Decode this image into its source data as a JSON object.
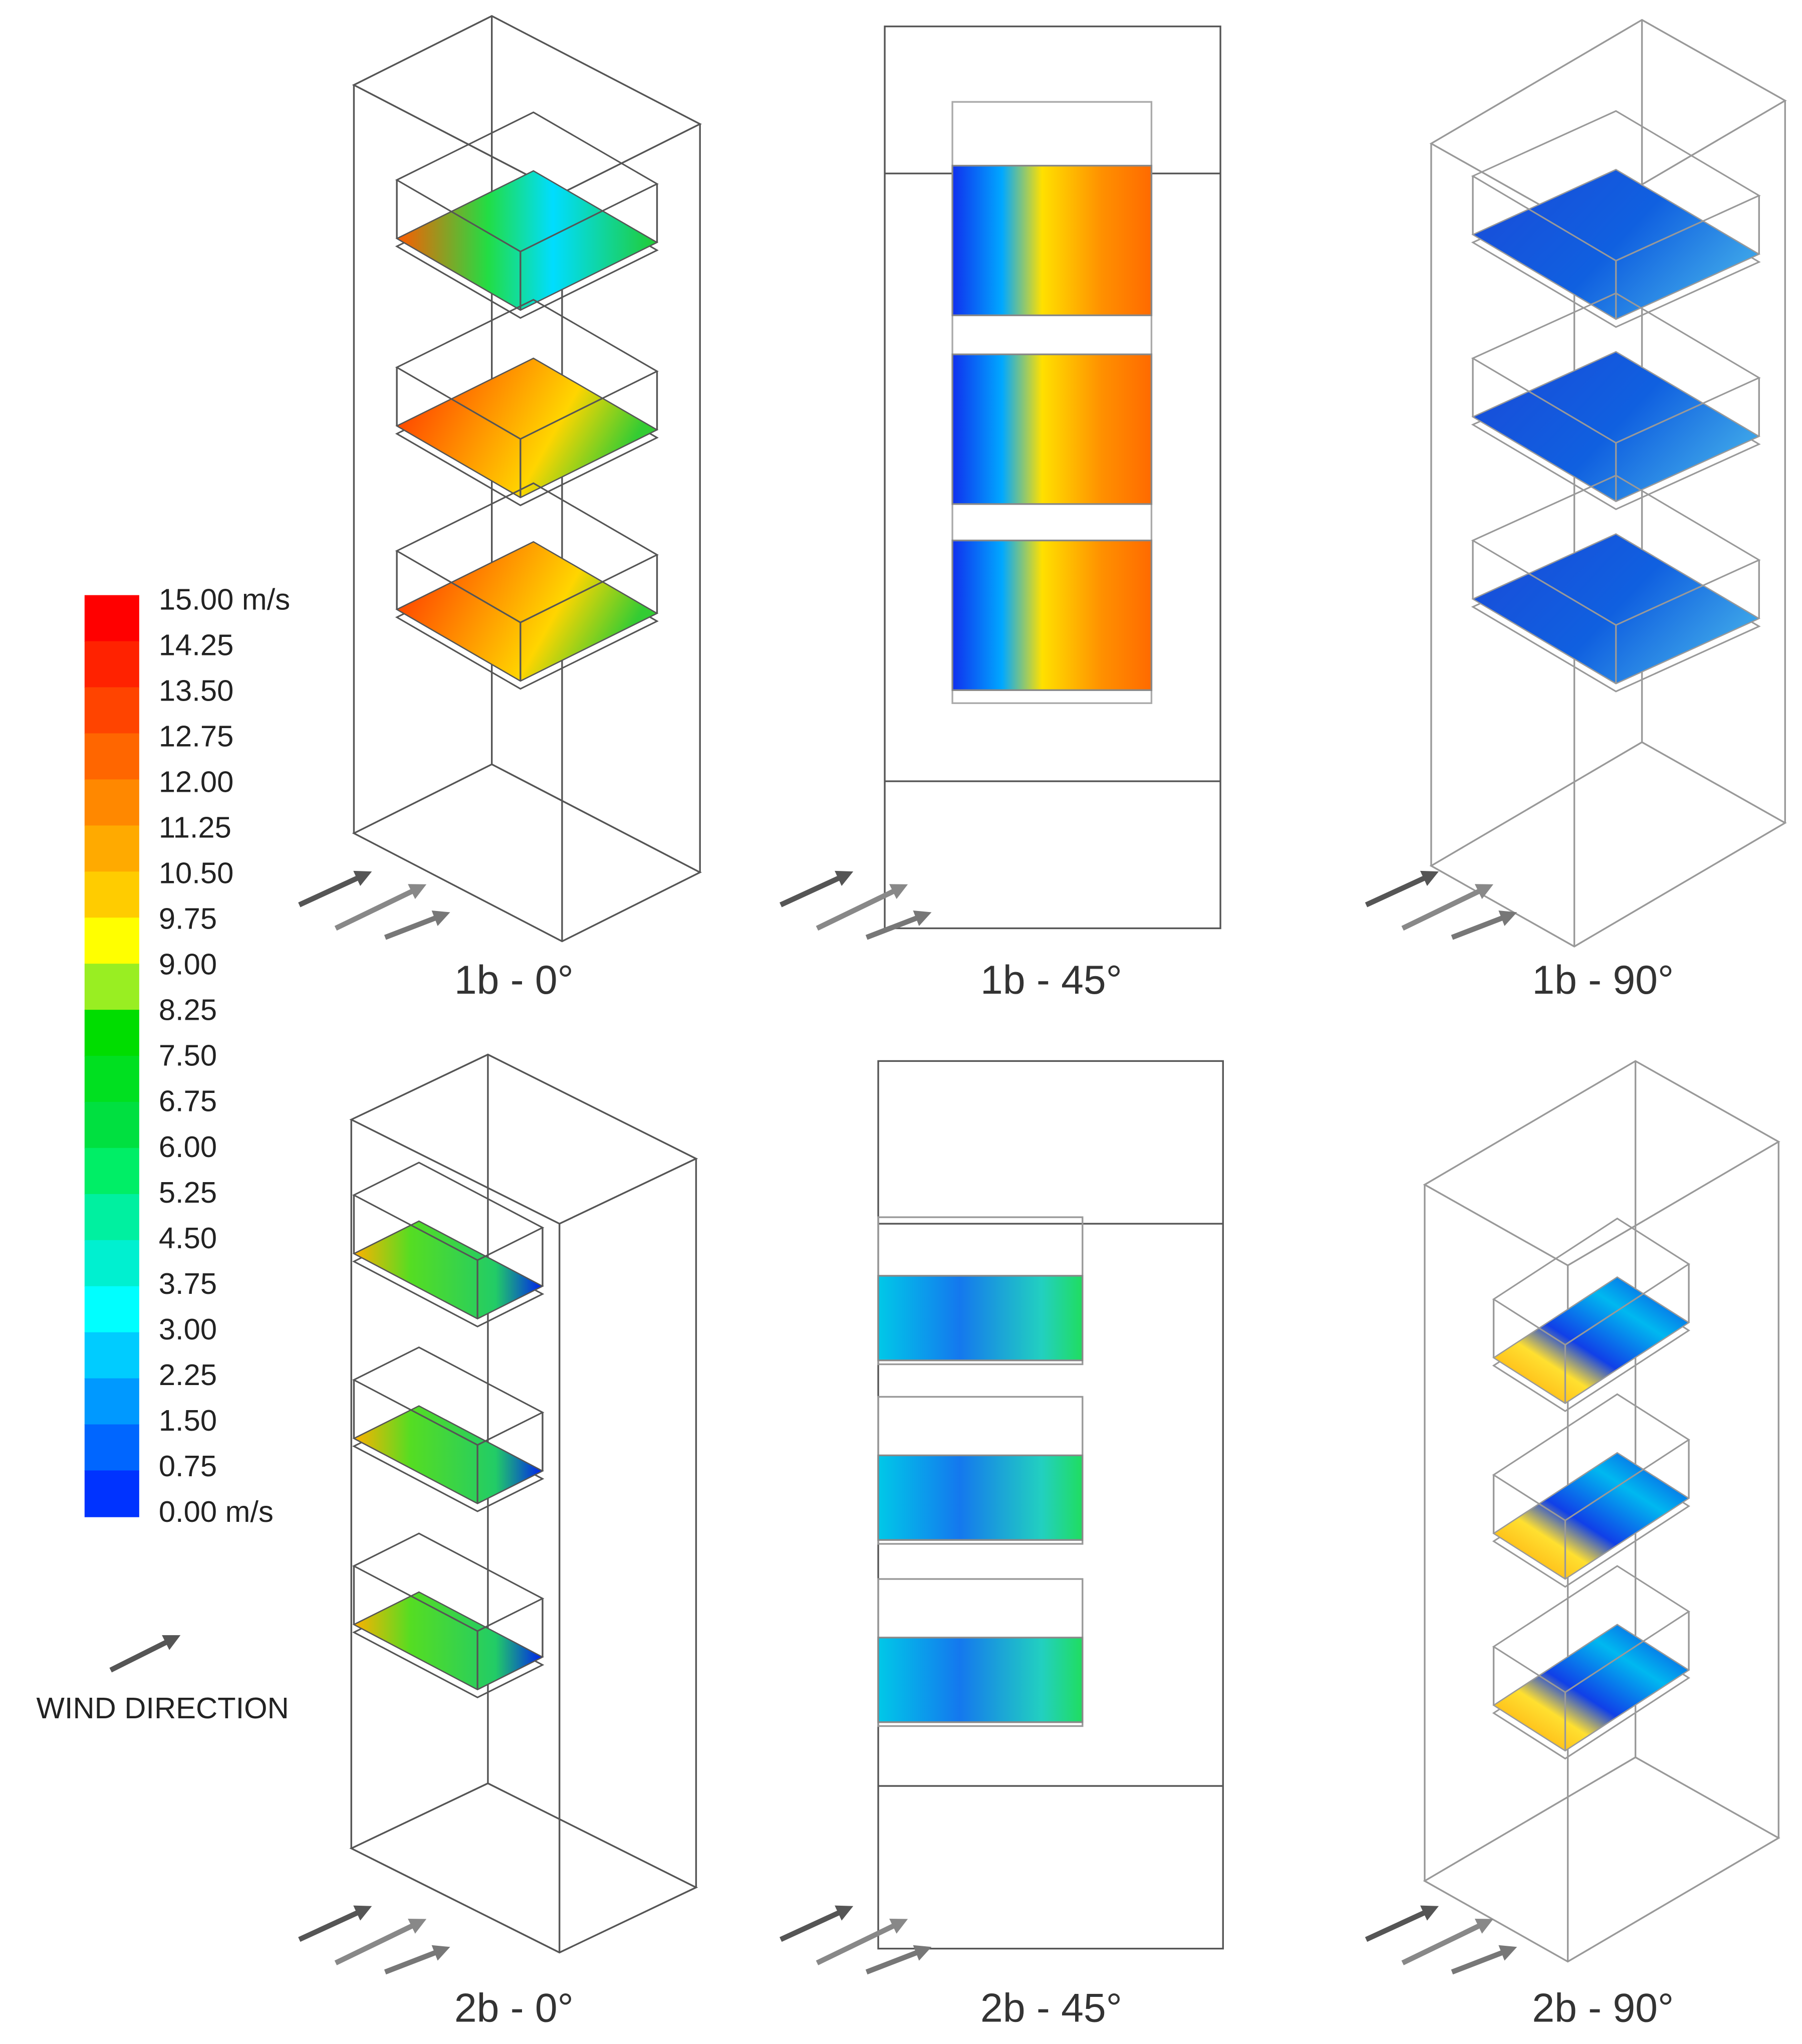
{
  "legend": {
    "labels": [
      "15.00 m/s",
      "14.25",
      "13.50",
      "12.75",
      "12.00",
      "11.25",
      "10.50",
      "9.75",
      "9.00",
      "8.25",
      "7.50",
      "6.75",
      "6.00",
      "5.25",
      "4.50",
      "3.75",
      "3.00",
      "2.25",
      "1.50",
      "0.75",
      "0.00 m/s"
    ]
  },
  "wind_direction_label": "WIND DIRECTION",
  "panels": [
    {
      "label": "1b - 0°"
    },
    {
      "label": "1b - 45°"
    },
    {
      "label": "1b - 90°"
    },
    {
      "label": "2b - 0°"
    },
    {
      "label": "2b - 45°"
    },
    {
      "label": "2b - 90°"
    }
  ]
}
